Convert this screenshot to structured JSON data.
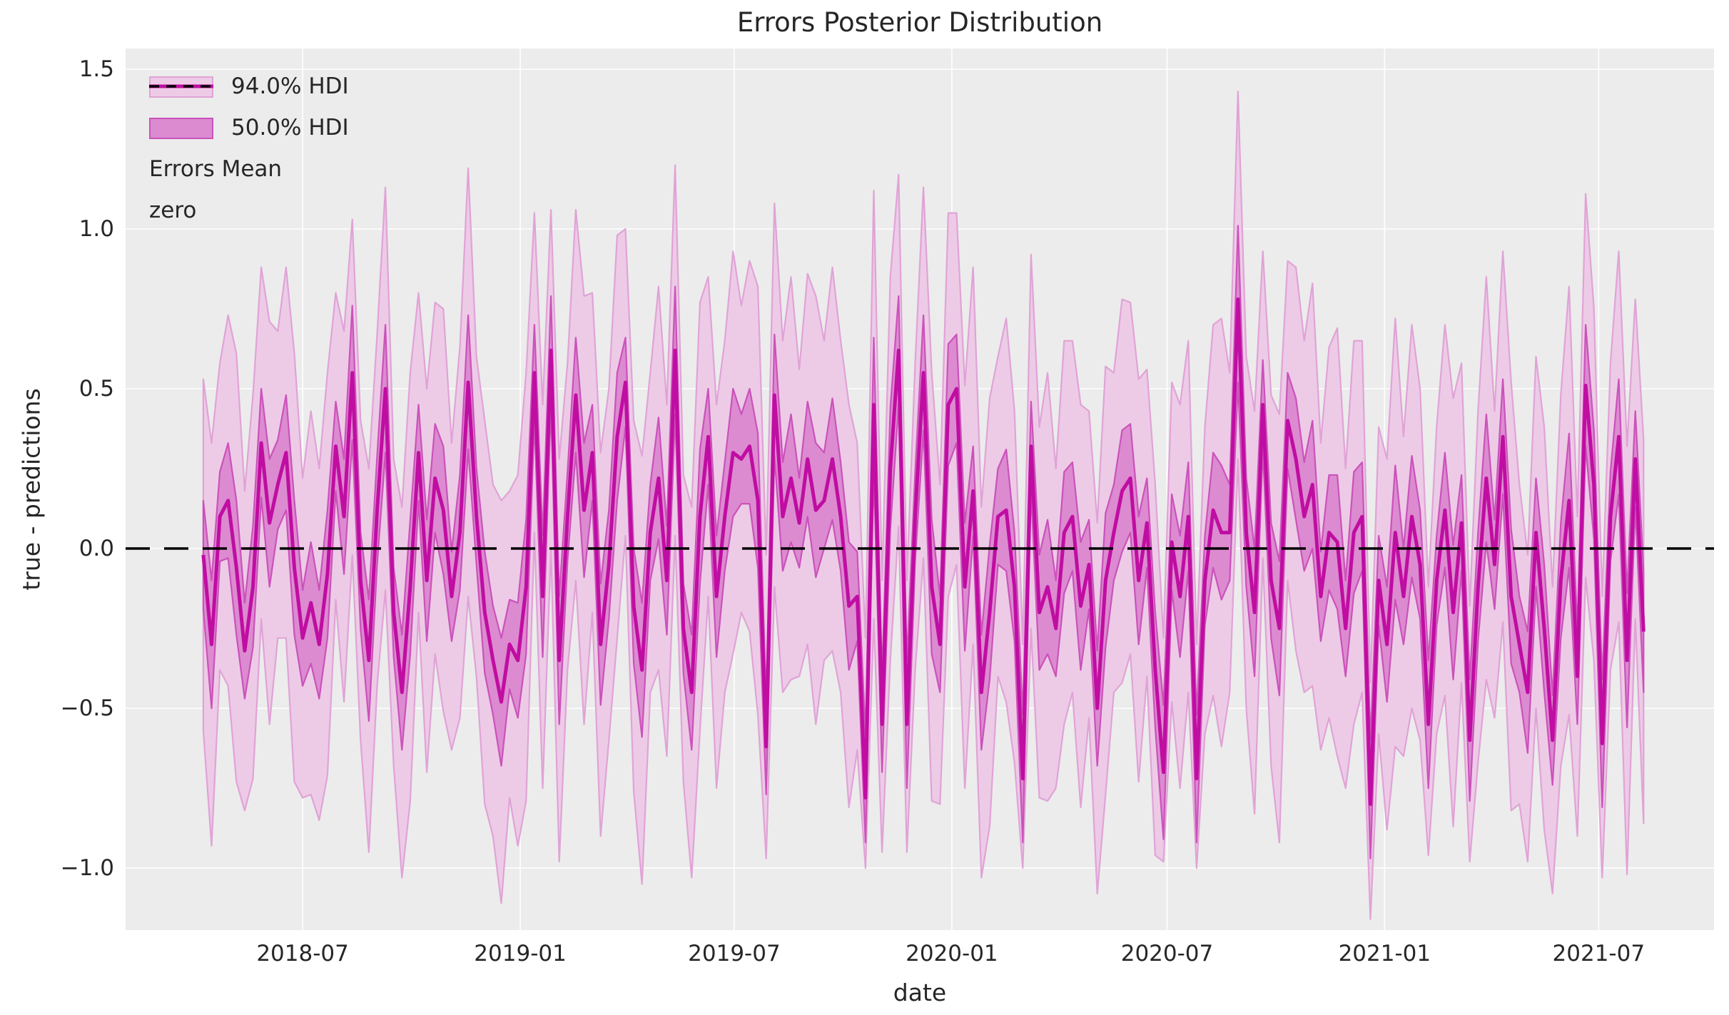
{
  "chart_data": {
    "type": "line",
    "title": "Errors Posterior Distribution",
    "xlabel": "date",
    "ylabel": "true - predictions",
    "legend_items": [
      "94.0% HDI",
      "50.0% HDI",
      "Errors Mean",
      "zero"
    ],
    "legend_position": "upper left",
    "grid": true,
    "zero_reference_line": 0.0,
    "ylim": [
      -1.19,
      1.56
    ],
    "x_start_date": "2018-04-08",
    "x_end_date": "2021-08-08",
    "x_step_days": 7,
    "n_points": 175,
    "x_ticks": [
      {
        "label": "2018-07",
        "week": 12.0
      },
      {
        "label": "2019-01",
        "week": 38.29
      },
      {
        "label": "2019-07",
        "week": 64.14
      },
      {
        "label": "2020-01",
        "week": 90.43
      },
      {
        "label": "2020-07",
        "week": 116.43
      },
      {
        "label": "2021-01",
        "week": 142.71
      },
      {
        "label": "2021-07",
        "week": 168.57
      }
    ],
    "y_ticks": [
      {
        "label": "1.5",
        "value": 1.5
      },
      {
        "label": "1.0",
        "value": 1.0
      },
      {
        "label": "0.5",
        "value": 0.5
      },
      {
        "label": "0.0",
        "value": 0.0
      },
      {
        "label": "−0.5",
        "value": -0.5
      },
      {
        "label": "−1.0",
        "value": -1.0
      }
    ],
    "colors": {
      "axes_background": "#ECECEC",
      "grid": "#FFFFFF",
      "hdi94_fill": "#EDCBE7",
      "hdi94_edge": "#E0A3D6",
      "hdi50_fill": "#DC8BD0",
      "hdi50_edge": "#CB52BA",
      "mean_line": "#C00DA2",
      "zero_line": "#000000",
      "text": "#262626"
    },
    "series": {
      "mean": [
        -0.02,
        -0.3,
        0.1,
        0.15,
        -0.06,
        -0.32,
        -0.12,
        0.33,
        0.08,
        0.2,
        0.3,
        -0.06,
        -0.28,
        -0.17,
        -0.3,
        -0.08,
        0.32,
        0.1,
        0.55,
        -0.1,
        -0.35,
        0.12,
        0.5,
        -0.2,
        -0.45,
        -0.12,
        0.3,
        -0.1,
        0.22,
        0.12,
        -0.15,
        0.05,
        0.52,
        0.1,
        -0.2,
        -0.35,
        -0.48,
        -0.3,
        -0.35,
        -0.12,
        0.55,
        -0.15,
        0.62,
        -0.35,
        0.1,
        0.48,
        0.12,
        0.3,
        -0.3,
        -0.05,
        0.35,
        0.52,
        -0.18,
        -0.38,
        0.05,
        0.22,
        -0.1,
        0.62,
        -0.25,
        -0.45,
        0.1,
        0.35,
        -0.15,
        0.1,
        0.3,
        0.28,
        0.32,
        0.15,
        -0.62,
        0.48,
        0.1,
        0.22,
        0.08,
        0.28,
        0.12,
        0.15,
        0.28,
        0.1,
        -0.18,
        -0.15,
        -0.78,
        0.45,
        -0.55,
        0.25,
        0.62,
        -0.55,
        0.1,
        0.55,
        -0.12,
        -0.3,
        0.45,
        0.5,
        -0.12,
        0.18,
        -0.45,
        -0.2,
        0.1,
        0.12,
        -0.12,
        -0.72,
        0.32,
        -0.2,
        -0.12,
        -0.25,
        0.05,
        0.1,
        -0.18,
        -0.05,
        -0.5,
        -0.1,
        0.05,
        0.18,
        0.22,
        -0.1,
        0.08,
        -0.38,
        -0.7,
        0.02,
        -0.15,
        0.1,
        -0.72,
        -0.1,
        0.12,
        0.05,
        0.05,
        0.78,
        0.05,
        -0.2,
        0.45,
        -0.1,
        -0.25,
        0.4,
        0.28,
        0.1,
        0.2,
        -0.15,
        0.05,
        0.02,
        -0.25,
        0.05,
        0.1,
        -0.8,
        -0.1,
        -0.3,
        0.05,
        -0.15,
        0.1,
        -0.05,
        -0.55,
        -0.1,
        0.12,
        -0.2,
        0.08,
        -0.6,
        -0.12,
        0.22,
        -0.05,
        0.35,
        -0.15,
        -0.3,
        -0.45,
        0.05,
        -0.25,
        -0.6,
        -0.1,
        0.15,
        -0.4,
        0.51,
        0.2,
        -0.61,
        0.1,
        0.35,
        -0.35,
        0.28,
        -0.26
      ],
      "hdi94_half": [
        0.55,
        0.63,
        0.48,
        0.58,
        0.67,
        0.5,
        0.6,
        0.55,
        0.63,
        0.48,
        0.58,
        0.67,
        0.5,
        0.6,
        0.55,
        0.63,
        0.48,
        0.58,
        0.67,
        0.5,
        0.6,
        0.55,
        0.63,
        0.48,
        0.58,
        0.67,
        0.5,
        0.6,
        0.55,
        0.63,
        0.48,
        0.58,
        0.67,
        0.5,
        0.6,
        0.55,
        0.63,
        0.48,
        0.58,
        0.67,
        0.5,
        0.6,
        0.55,
        0.63,
        0.48,
        0.58,
        0.67,
        0.5,
        0.6,
        0.55,
        0.63,
        0.48,
        0.58,
        0.67,
        0.5,
        0.6,
        0.55,
        0.63,
        0.48,
        0.58,
        0.67,
        0.5,
        0.6,
        0.55,
        0.63,
        0.48,
        0.58,
        0.67,
        0.5,
        0.6,
        0.55,
        0.63,
        0.48,
        0.58,
        0.67,
        0.5,
        0.6,
        0.55,
        0.63,
        0.48,
        0.58,
        0.67,
        0.5,
        0.6,
        0.55,
        0.63,
        0.48,
        0.58,
        0.67,
        0.5,
        0.6,
        0.55,
        0.63,
        0.48,
        0.58,
        0.67,
        0.5,
        0.6,
        0.55,
        0.63,
        0.48,
        0.58,
        0.67,
        0.5,
        0.6,
        0.55,
        0.63,
        0.48,
        0.58,
        0.67,
        0.5,
        0.6,
        0.55,
        0.63,
        0.48,
        0.58,
        0.67,
        0.5,
        0.6,
        0.55,
        0.63,
        0.48,
        0.58,
        0.67,
        0.5,
        0.6,
        0.55,
        0.63,
        0.48,
        0.58,
        0.67,
        0.5,
        0.6,
        0.55,
        0.63,
        0.48,
        0.58,
        0.67,
        0.5,
        0.6,
        0.55,
        0.63,
        0.48,
        0.58,
        0.67,
        0.5,
        0.6,
        0.55,
        0.63,
        0.48,
        0.58,
        0.67,
        0.5,
        0.6,
        0.55,
        0.63,
        0.48,
        0.58,
        0.67,
        0.5,
        0.6,
        0.55,
        0.63,
        0.48,
        0.58,
        0.67,
        0.5,
        0.6,
        0.55,
        0.63,
        0.48,
        0.58,
        0.67,
        0.5,
        0.6
      ],
      "hdi50_half": [
        0.17,
        0.2,
        0.14,
        0.18,
        0.21,
        0.15,
        0.19,
        0.17,
        0.2,
        0.14,
        0.18,
        0.21,
        0.15,
        0.19,
        0.17,
        0.2,
        0.14,
        0.18,
        0.21,
        0.15,
        0.19,
        0.17,
        0.2,
        0.14,
        0.18,
        0.21,
        0.15,
        0.19,
        0.17,
        0.2,
        0.14,
        0.18,
        0.21,
        0.15,
        0.19,
        0.17,
        0.2,
        0.14,
        0.18,
        0.21,
        0.15,
        0.19,
        0.17,
        0.2,
        0.14,
        0.18,
        0.21,
        0.15,
        0.19,
        0.17,
        0.2,
        0.14,
        0.18,
        0.21,
        0.15,
        0.19,
        0.17,
        0.2,
        0.14,
        0.18,
        0.21,
        0.15,
        0.19,
        0.17,
        0.2,
        0.14,
        0.18,
        0.21,
        0.15,
        0.19,
        0.17,
        0.2,
        0.14,
        0.18,
        0.21,
        0.15,
        0.19,
        0.17,
        0.2,
        0.14,
        0.18,
        0.21,
        0.15,
        0.19,
        0.17,
        0.2,
        0.14,
        0.18,
        0.21,
        0.15,
        0.19,
        0.17,
        0.2,
        0.14,
        0.18,
        0.21,
        0.15,
        0.19,
        0.17,
        0.2,
        0.14,
        0.18,
        0.21,
        0.15,
        0.19,
        0.17,
        0.2,
        0.14,
        0.18,
        0.21,
        0.15,
        0.19,
        0.17,
        0.2,
        0.14,
        0.18,
        0.21,
        0.15,
        0.19,
        0.17,
        0.2,
        0.14,
        0.18,
        0.21,
        0.15,
        0.19,
        0.17,
        0.2,
        0.14,
        0.18,
        0.21,
        0.15,
        0.19,
        0.17,
        0.2,
        0.14,
        0.18,
        0.21,
        0.15,
        0.19,
        0.17,
        0.2,
        0.14,
        0.18,
        0.21,
        0.15,
        0.19,
        0.17,
        0.2,
        0.14,
        0.18,
        0.21,
        0.15,
        0.19,
        0.17,
        0.2,
        0.14,
        0.18,
        0.21,
        0.15,
        0.19,
        0.17,
        0.2,
        0.14,
        0.18,
        0.21,
        0.15,
        0.19,
        0.17,
        0.2,
        0.14,
        0.18,
        0.21,
        0.15,
        0.19
      ],
      "band_overrides": {
        "18": {
          "b94": [
            -0.02,
            1.03
          ]
        },
        "42": {
          "b94": [
            0.0,
            1.06
          ]
        },
        "57": {
          "b94": [
            0.04,
            1.2
          ]
        },
        "68": {
          "b94": [
            -0.97,
            -0.02
          ]
        },
        "80": {
          "b94": [
            -1.0,
            -0.28
          ],
          "b50": [
            -0.92,
            -0.58
          ]
        },
        "82": {
          "b94": [
            -0.95,
            -0.1
          ]
        },
        "85": {
          "b94": [
            -0.95,
            -0.1
          ]
        },
        "93": {
          "b94": [
            -0.3,
            0.88
          ]
        },
        "99": {
          "b94": [
            -1.0,
            -0.3
          ]
        },
        "100": {
          "b94": [
            -0.25,
            0.92
          ]
        },
        "116": {
          "b94": [
            -0.98,
            -0.28
          ]
        },
        "120": {
          "b94": [
            -1.0,
            -0.3
          ]
        },
        "125": {
          "b94": [
            0.28,
            1.43
          ],
          "b50": [
            0.52,
            1.01
          ]
        },
        "141": {
          "b94": [
            -1.16,
            -0.42
          ],
          "b50": [
            -0.97,
            -0.6
          ]
        },
        "148": {
          "b94": [
            -0.96,
            -0.12
          ]
        },
        "153": {
          "b94": [
            -0.98,
            -0.18
          ]
        },
        "160": {
          "b94": [
            -0.98,
            -0.02
          ]
        },
        "169": {
          "b94": [
            -1.03,
            -0.15
          ]
        }
      }
    }
  }
}
